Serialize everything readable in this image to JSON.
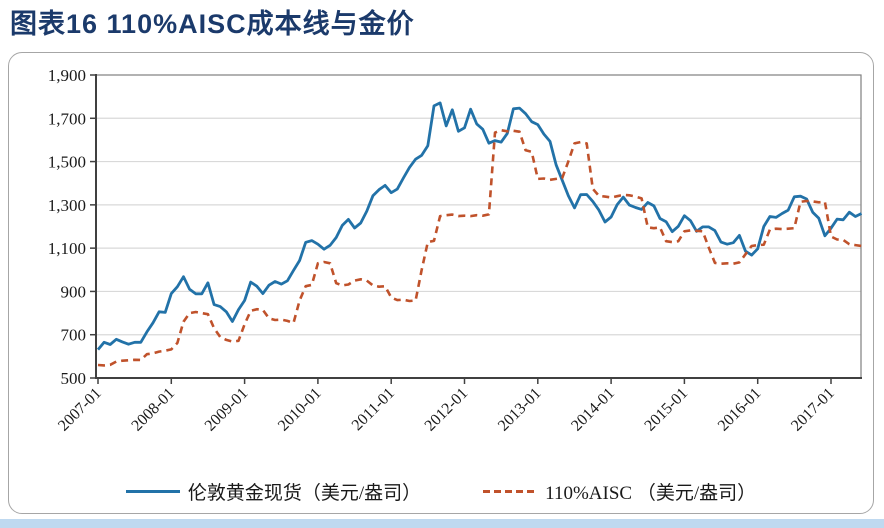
{
  "title": "图表16  110%AISC成本线与金价",
  "colors": {
    "title": "#1B3A6B",
    "panel_border": "#A6A6A6",
    "grid": "#D9D9D9",
    "axis": "#404040",
    "plot_frame": "#7F7F7F",
    "bottom_strip": "#BFD9F0"
  },
  "chart_data": {
    "type": "line",
    "title": "图表16  110%AISC成本线与金价",
    "xlabel": "",
    "ylabel": "",
    "ylim": [
      500,
      1900
    ],
    "grid": "horizontal",
    "legend_position": "bottom",
    "x_unit": "month",
    "x_range": [
      "2007-01",
      "2017-06"
    ],
    "x_points_per_tick": 12,
    "x_tick_labels": [
      "2007-01",
      "2008-01",
      "2009-01",
      "2010-01",
      "2011-01",
      "2012-01",
      "2013-01",
      "2014-01",
      "2015-01",
      "2016-01",
      "2017-01"
    ],
    "y_tick_values": [
      500,
      700,
      900,
      1100,
      1300,
      1500,
      1700,
      1900
    ],
    "y_tick_labels": [
      "500",
      "700",
      "900",
      "1,100",
      "1,300",
      "1,500",
      "1,700",
      "1,900"
    ],
    "series": [
      {
        "name": "伦敦黄金现货（美元/盎司）",
        "color": "#2272A8",
        "line": "solid",
        "values": [
          631,
          665,
          655,
          679,
          667,
          656,
          665,
          665,
          713,
          755,
          806,
          803,
          890,
          922,
          968,
          910,
          889,
          889,
          940,
          839,
          830,
          806,
          761,
          816,
          858,
          943,
          924,
          890,
          929,
          946,
          934,
          949,
          997,
          1043,
          1127,
          1135,
          1118,
          1095,
          1113,
          1149,
          1205,
          1233,
          1193,
          1216,
          1271,
          1342,
          1370,
          1390,
          1356,
          1373,
          1424,
          1473,
          1511,
          1529,
          1573,
          1757,
          1771,
          1665,
          1739,
          1640,
          1656,
          1742,
          1674,
          1649,
          1585,
          1597,
          1590,
          1630,
          1744,
          1747,
          1721,
          1684,
          1671,
          1627,
          1593,
          1485,
          1414,
          1343,
          1286,
          1347,
          1348,
          1316,
          1276,
          1221,
          1244,
          1301,
          1336,
          1299,
          1288,
          1279,
          1311,
          1295,
          1237,
          1222,
          1176,
          1201,
          1250,
          1227,
          1178,
          1198,
          1198,
          1181,
          1128,
          1118,
          1125,
          1159,
          1086,
          1068,
          1097,
          1200,
          1246,
          1242,
          1260,
          1276,
          1337,
          1340,
          1327,
          1266,
          1238,
          1157,
          1192,
          1234,
          1231,
          1266,
          1246,
          1260
        ]
      },
      {
        "name": "110%AISC （美元/盎司）",
        "color": "#C0522B",
        "line": "dashed",
        "values": [
          560,
          558,
          561,
          576,
          580,
          582,
          584,
          583,
          610,
          614,
          622,
          626,
          632,
          662,
          760,
          800,
          805,
          800,
          795,
          730,
          690,
          676,
          668,
          672,
          748,
          810,
          818,
          814,
          776,
          768,
          770,
          764,
          754,
          858,
          924,
          930,
          1030,
          1036,
          1030,
          938,
          928,
          932,
          950,
          956,
          950,
          928,
          922,
          924,
          872,
          860,
          862,
          856,
          858,
          1000,
          1128,
          1134,
          1248,
          1252,
          1255,
          1248,
          1250,
          1248,
          1252,
          1250,
          1256,
          1634,
          1645,
          1640,
          1642,
          1638,
          1552,
          1545,
          1420,
          1422,
          1416,
          1420,
          1424,
          1500,
          1584,
          1590,
          1584,
          1374,
          1342,
          1338,
          1334,
          1340,
          1346,
          1344,
          1338,
          1330,
          1196,
          1192,
          1196,
          1132,
          1128,
          1132,
          1178,
          1182,
          1180,
          1178,
          1102,
          1032,
          1028,
          1030,
          1028,
          1034,
          1072,
          1110,
          1114,
          1116,
          1186,
          1190,
          1188,
          1190,
          1192,
          1314,
          1318,
          1316,
          1312,
          1314,
          1154,
          1140,
          1138,
          1118,
          1114,
          1110
        ]
      }
    ]
  }
}
